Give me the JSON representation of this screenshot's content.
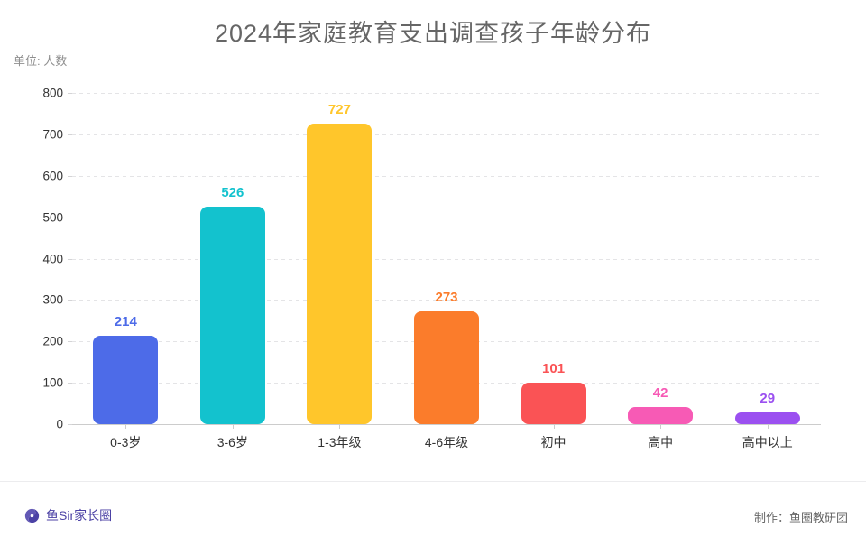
{
  "title": "2024年家庭教育支出调查孩子年龄分布",
  "unit_label": "单位: 人数",
  "footer": {
    "brand": "鱼Sir家长圈",
    "brand_color": "#4c42a5",
    "credit": "制作：鱼圈教研团"
  },
  "chart_data": {
    "type": "bar",
    "title": "2024年家庭教育支出调查孩子年龄分布",
    "categories": [
      "0-3岁",
      "3-6岁",
      "1-3年级",
      "4-6年级",
      "初中",
      "高中",
      "高中以上"
    ],
    "values": [
      214,
      526,
      727,
      273,
      101,
      42,
      29
    ],
    "bar_colors": [
      "#4D6BE8",
      "#13C2CE",
      "#FFC62B",
      "#FB7C2B",
      "#FA5355",
      "#F75AB5",
      "#9B50F0"
    ],
    "xlabel": "",
    "ylabel": "单位: 人数",
    "ylim": [
      0,
      800
    ],
    "ytick_step": 100,
    "grid": "dashed horizontal",
    "legend": "none",
    "value_labels": "above bars, colored same as bar"
  }
}
